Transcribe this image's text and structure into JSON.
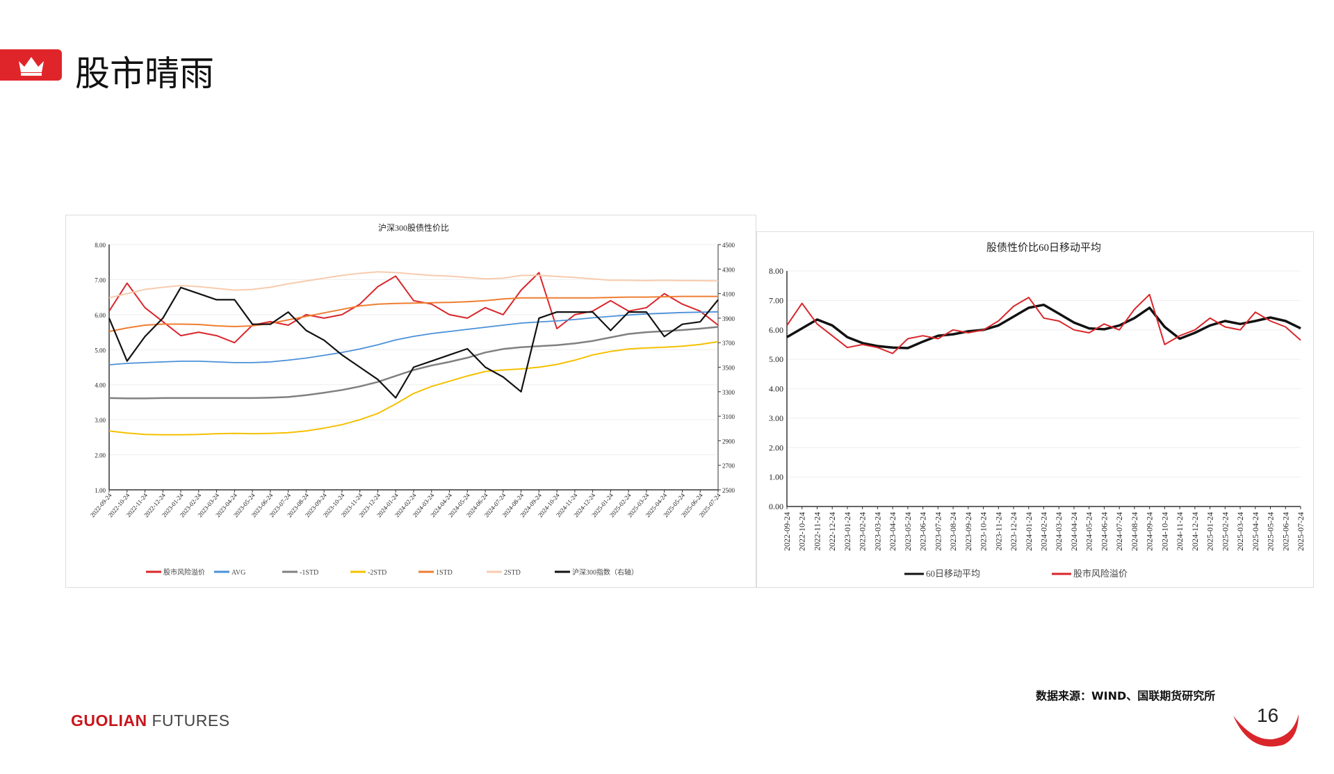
{
  "header": {
    "title": "股市晴雨",
    "icon": "crown-icon",
    "accent": "#e0252a"
  },
  "footer": {
    "source": "数据来源：WIND、国联期货研究所",
    "brand_main": "GUOLIAN",
    "brand_sub": " FUTURES",
    "page_number": "16"
  },
  "chart_data": [
    {
      "type": "line",
      "title": "沪深300股债性价比",
      "categories": [
        "2022-09-24",
        "2022-10-24",
        "2022-11-24",
        "2022-12-24",
        "2023-01-24",
        "2023-02-24",
        "2023-03-24",
        "2023-04-24",
        "2023-05-24",
        "2023-06-24",
        "2023-07-24",
        "2023-08-24",
        "2023-09-24",
        "2023-10-24",
        "2023-11-24",
        "2023-12-24",
        "2024-01-24",
        "2024-02-24",
        "2024-03-24",
        "2024-04-24",
        "2024-05-24",
        "2024-06-24",
        "2024-07-24",
        "2024-08-24",
        "2024-09-24",
        "2024-10-24",
        "2024-11-24",
        "2024-12-24",
        "2025-01-24",
        "2025-02-24",
        "2025-03-24",
        "2025-04-24",
        "2025-05-24",
        "2025-06-24",
        "2025-07-24"
      ],
      "ylim": [
        1,
        8
      ],
      "yticks": [
        "1.00",
        "2.00",
        "3.00",
        "4.00",
        "5.00",
        "6.00",
        "7.00",
        "8.00"
      ],
      "y2lim": [
        2500,
        4500
      ],
      "y2ticks": [
        "2500",
        "2700",
        "2900",
        "3100",
        "3300",
        "3500",
        "3700",
        "3900",
        "4100",
        "4300",
        "4500"
      ],
      "legend_position": "bottom",
      "grid": "horizontal",
      "series": [
        {
          "name": "股市风险溢价",
          "color": "#d9262b",
          "axis": "left",
          "values": [
            6.1,
            6.9,
            6.2,
            5.8,
            5.4,
            5.5,
            5.4,
            5.2,
            5.7,
            5.8,
            5.7,
            6.0,
            5.9,
            6.0,
            6.3,
            6.8,
            7.1,
            6.4,
            6.3,
            6.0,
            5.9,
            6.2,
            6.0,
            6.7,
            7.2,
            5.6,
            6.0,
            6.1,
            6.4,
            6.1,
            6.2,
            6.6,
            6.3,
            6.1,
            5.7
          ]
        },
        {
          "name": "AVG",
          "color": "#4a90d9",
          "axis": "left",
          "values": [
            4.57,
            4.61,
            4.63,
            4.65,
            4.67,
            4.67,
            4.65,
            4.63,
            4.63,
            4.65,
            4.7,
            4.76,
            4.84,
            4.92,
            5.02,
            5.14,
            5.28,
            5.38,
            5.46,
            5.52,
            5.58,
            5.64,
            5.7,
            5.76,
            5.79,
            5.82,
            5.86,
            5.91,
            5.95,
            5.99,
            6.02,
            6.04,
            6.06,
            6.07,
            6.08
          ]
        },
        {
          "name": "-1STD",
          "color": "#808080",
          "axis": "left",
          "values": [
            3.62,
            3.61,
            3.61,
            3.62,
            3.62,
            3.62,
            3.62,
            3.62,
            3.62,
            3.63,
            3.65,
            3.7,
            3.77,
            3.85,
            3.95,
            4.08,
            4.25,
            4.42,
            4.55,
            4.65,
            4.77,
            4.92,
            5.02,
            5.07,
            5.1,
            5.13,
            5.18,
            5.25,
            5.35,
            5.45,
            5.5,
            5.53,
            5.56,
            5.6,
            5.65
          ]
        },
        {
          "name": "-2STD",
          "color": "#f5c000",
          "axis": "left",
          "values": [
            2.68,
            2.62,
            2.58,
            2.57,
            2.57,
            2.58,
            2.6,
            2.61,
            2.6,
            2.61,
            2.63,
            2.68,
            2.76,
            2.86,
            3.0,
            3.18,
            3.45,
            3.75,
            3.95,
            4.1,
            4.25,
            4.38,
            4.42,
            4.45,
            4.5,
            4.58,
            4.7,
            4.85,
            4.95,
            5.02,
            5.05,
            5.07,
            5.1,
            5.15,
            5.23
          ]
        },
        {
          "name": "1STD",
          "color": "#ef7d31",
          "axis": "left",
          "values": [
            5.52,
            5.62,
            5.7,
            5.73,
            5.73,
            5.72,
            5.68,
            5.66,
            5.68,
            5.75,
            5.85,
            5.95,
            6.05,
            6.15,
            6.25,
            6.3,
            6.32,
            6.33,
            6.34,
            6.35,
            6.37,
            6.4,
            6.45,
            6.48,
            6.48,
            6.48,
            6.48,
            6.48,
            6.49,
            6.5,
            6.5,
            6.51,
            6.52,
            6.52,
            6.52
          ]
        },
        {
          "name": "2STD",
          "color": "#f8cbad",
          "axis": "left",
          "values": [
            6.48,
            6.6,
            6.72,
            6.78,
            6.83,
            6.8,
            6.75,
            6.7,
            6.72,
            6.78,
            6.88,
            6.96,
            7.04,
            7.12,
            7.18,
            7.22,
            7.2,
            7.16,
            7.12,
            7.1,
            7.06,
            7.02,
            7.04,
            7.12,
            7.12,
            7.09,
            7.06,
            7.02,
            6.98,
            6.98,
            6.97,
            6.98,
            6.97,
            6.97,
            6.96
          ]
        },
        {
          "name": "沪深300指数（右轴）",
          "color": "#111111",
          "axis": "right",
          "values": [
            3900,
            3550,
            3750,
            3900,
            4150,
            4100,
            4050,
            4050,
            3850,
            3850,
            3950,
            3800,
            3720,
            3600,
            3500,
            3400,
            3250,
            3500,
            3550,
            3600,
            3650,
            3500,
            3420,
            3300,
            3900,
            3950,
            3950,
            3950,
            3800,
            3950,
            3950,
            3750,
            3850,
            3870,
            4050
          ]
        }
      ]
    },
    {
      "type": "line",
      "title": "股债性价比60日移动平均",
      "categories": [
        "2022-09-24",
        "2022-10-24",
        "2022-11-24",
        "2022-12-24",
        "2023-01-24",
        "2023-02-24",
        "2023-03-24",
        "2023-04-24",
        "2023-05-24",
        "2023-06-24",
        "2023-07-24",
        "2023-08-24",
        "2023-09-24",
        "2023-10-24",
        "2023-11-24",
        "2023-12-24",
        "2024-01-24",
        "2024-02-24",
        "2024-03-24",
        "2024-04-24",
        "2024-05-24",
        "2024-06-24",
        "2024-07-24",
        "2024-08-24",
        "2024-09-24",
        "2024-10-24",
        "2024-11-24",
        "2024-12-24",
        "2025-01-24",
        "2025-02-24",
        "2025-03-24",
        "2025-04-24",
        "2025-05-24",
        "2025-06-24",
        "2025-07-24"
      ],
      "ylim": [
        0,
        8
      ],
      "yticks": [
        "0.00",
        "1.00",
        "2.00",
        "3.00",
        "4.00",
        "5.00",
        "6.00",
        "7.00",
        "8.00"
      ],
      "legend_position": "bottom",
      "grid": "horizontal",
      "series": [
        {
          "name": "60日移动平均",
          "color": "#111111",
          "values": [
            5.75,
            6.05,
            6.35,
            6.15,
            5.75,
            5.55,
            5.45,
            5.4,
            5.38,
            5.6,
            5.8,
            5.85,
            5.95,
            6.0,
            6.15,
            6.45,
            6.75,
            6.85,
            6.55,
            6.25,
            6.05,
            6.02,
            6.15,
            6.4,
            6.75,
            6.1,
            5.7,
            5.9,
            6.15,
            6.3,
            6.2,
            6.3,
            6.42,
            6.3,
            6.05
          ]
        },
        {
          "name": "股市风险溢价",
          "color": "#d9262b",
          "values": [
            6.15,
            6.9,
            6.2,
            5.8,
            5.4,
            5.5,
            5.4,
            5.2,
            5.7,
            5.8,
            5.7,
            6.0,
            5.9,
            6.0,
            6.3,
            6.8,
            7.1,
            6.4,
            6.3,
            6.0,
            5.9,
            6.2,
            6.0,
            6.7,
            7.2,
            5.5,
            5.8,
            6.0,
            6.4,
            6.1,
            6.0,
            6.6,
            6.3,
            6.1,
            5.65
          ]
        }
      ]
    }
  ]
}
